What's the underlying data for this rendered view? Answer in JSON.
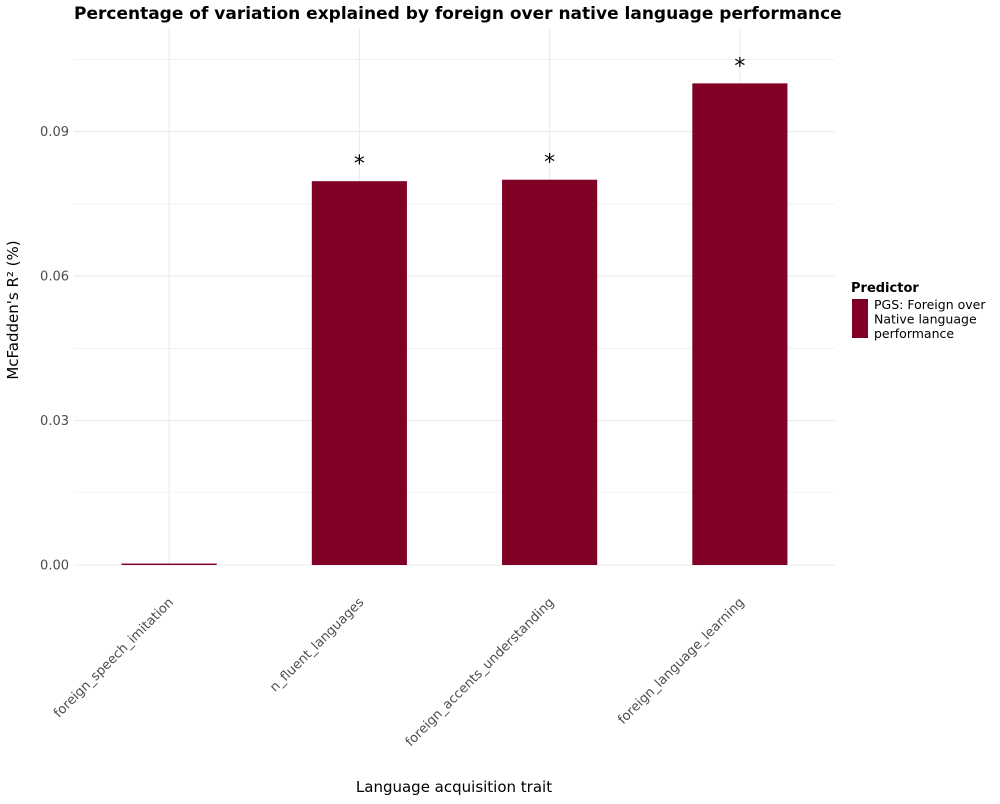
{
  "chart_data": {
    "type": "bar",
    "title": "Percentage of variation explained by foreign over native language performance",
    "xlabel": "Language acquisition trait",
    "ylabel": "McFadden's R² (%)",
    "categories": [
      "foreign_speech_imitation",
      "n_fluent_languages",
      "foreign_accents_understanding",
      "foreign_language_learning"
    ],
    "series": [
      {
        "name": "PGS: Foreign over Native language performance",
        "values": [
          0.0003,
          0.0797,
          0.08,
          0.1
        ],
        "significance": [
          "",
          "*",
          "*",
          "*"
        ]
      }
    ],
    "ylim": [
      0,
      0.1115
    ],
    "yticks": [
      "0.00",
      "0.03",
      "0.06",
      "0.09"
    ],
    "ytick_values": [
      0,
      0.03,
      0.06,
      0.09
    ],
    "grid": true,
    "legend": {
      "title": "Predictor",
      "position": "right",
      "entries": [
        {
          "lines": [
            "PGS: Foreign over",
            "Native language",
            "performance"
          ],
          "color": "#800026"
        }
      ]
    },
    "colors": {
      "bar": "#800026",
      "grid": "#ebebeb",
      "text": "#000000",
      "tick_text": "#4d4d4d"
    }
  }
}
